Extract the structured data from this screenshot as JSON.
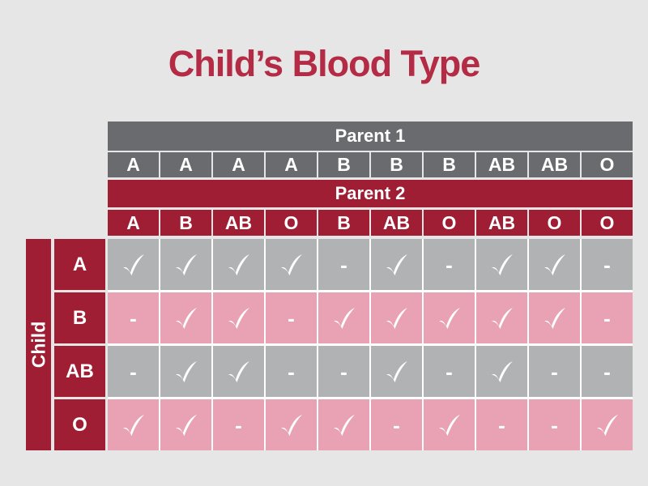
{
  "slide": {
    "title": "Child’s Blood Type"
  },
  "table": {
    "parent1": {
      "label": "Parent 1",
      "types": [
        "A",
        "A",
        "A",
        "A",
        "B",
        "B",
        "B",
        "AB",
        "AB",
        "O"
      ]
    },
    "parent2": {
      "label": "Parent 2",
      "types": [
        "A",
        "B",
        "AB",
        "O",
        "B",
        "AB",
        "O",
        "AB",
        "O",
        "O"
      ]
    },
    "child": {
      "label": "Child",
      "types": [
        "A",
        "B",
        "AB",
        "O"
      ]
    },
    "cells": [
      [
        "✓",
        "✓",
        "✓",
        "✓",
        "-",
        "✓",
        "-",
        "✓",
        "✓",
        "-"
      ],
      [
        "-",
        "✓",
        "✓",
        "-",
        "✓",
        "✓",
        "✓",
        "✓",
        "✓",
        "-"
      ],
      [
        "-",
        "✓",
        "✓",
        "-",
        "-",
        "✓",
        "-",
        "✓",
        "-",
        "-"
      ],
      [
        "✓",
        "✓",
        "-",
        "✓",
        "✓",
        "-",
        "✓",
        "-",
        "-",
        "✓"
      ]
    ]
  },
  "icons": {
    "check": "✓",
    "dash": "-"
  },
  "colors": {
    "background": "#E6E6E7",
    "title": "#B32B44",
    "header_gray": "#6A6B6E",
    "crimson": "#A01E34",
    "cell_gray": "#B0B2B4",
    "cell_pink": "#E9A2B3",
    "grid_gap": "#FFFFFF",
    "text_white": "#FFFFFF"
  },
  "chart_data": {
    "type": "table",
    "title": "Child’s Blood Type",
    "column_header_groups": [
      {
        "label": "Parent 1",
        "values": [
          "A",
          "A",
          "A",
          "A",
          "B",
          "B",
          "B",
          "AB",
          "AB",
          "O"
        ]
      },
      {
        "label": "Parent 2",
        "values": [
          "A",
          "B",
          "AB",
          "O",
          "B",
          "AB",
          "O",
          "AB",
          "O",
          "O"
        ]
      }
    ],
    "row_header_group": {
      "label": "Child",
      "values": [
        "A",
        "B",
        "AB",
        "O"
      ]
    },
    "rows": [
      {
        "child_type": "A",
        "possible": [
          "✓",
          "✓",
          "✓",
          "✓",
          "-",
          "✓",
          "-",
          "✓",
          "✓",
          "-"
        ]
      },
      {
        "child_type": "B",
        "possible": [
          "-",
          "✓",
          "✓",
          "-",
          "✓",
          "✓",
          "✓",
          "✓",
          "✓",
          "-"
        ]
      },
      {
        "child_type": "AB",
        "possible": [
          "-",
          "✓",
          "✓",
          "-",
          "-",
          "✓",
          "-",
          "✓",
          "-",
          "-"
        ]
      },
      {
        "child_type": "O",
        "possible": [
          "✓",
          "✓",
          "-",
          "✓",
          "✓",
          "-",
          "✓",
          "-",
          "-",
          "✓"
        ]
      }
    ],
    "cell_encoding": {
      "✓": "blood type possible",
      "-": "blood type not possible"
    },
    "layout_hints": {
      "row_band_colors_alternate": [
        "gray",
        "pink"
      ],
      "header_band_colors": {
        "Parent 1": "gray",
        "Parent 2": "crimson",
        "Child": "crimson"
      }
    }
  }
}
